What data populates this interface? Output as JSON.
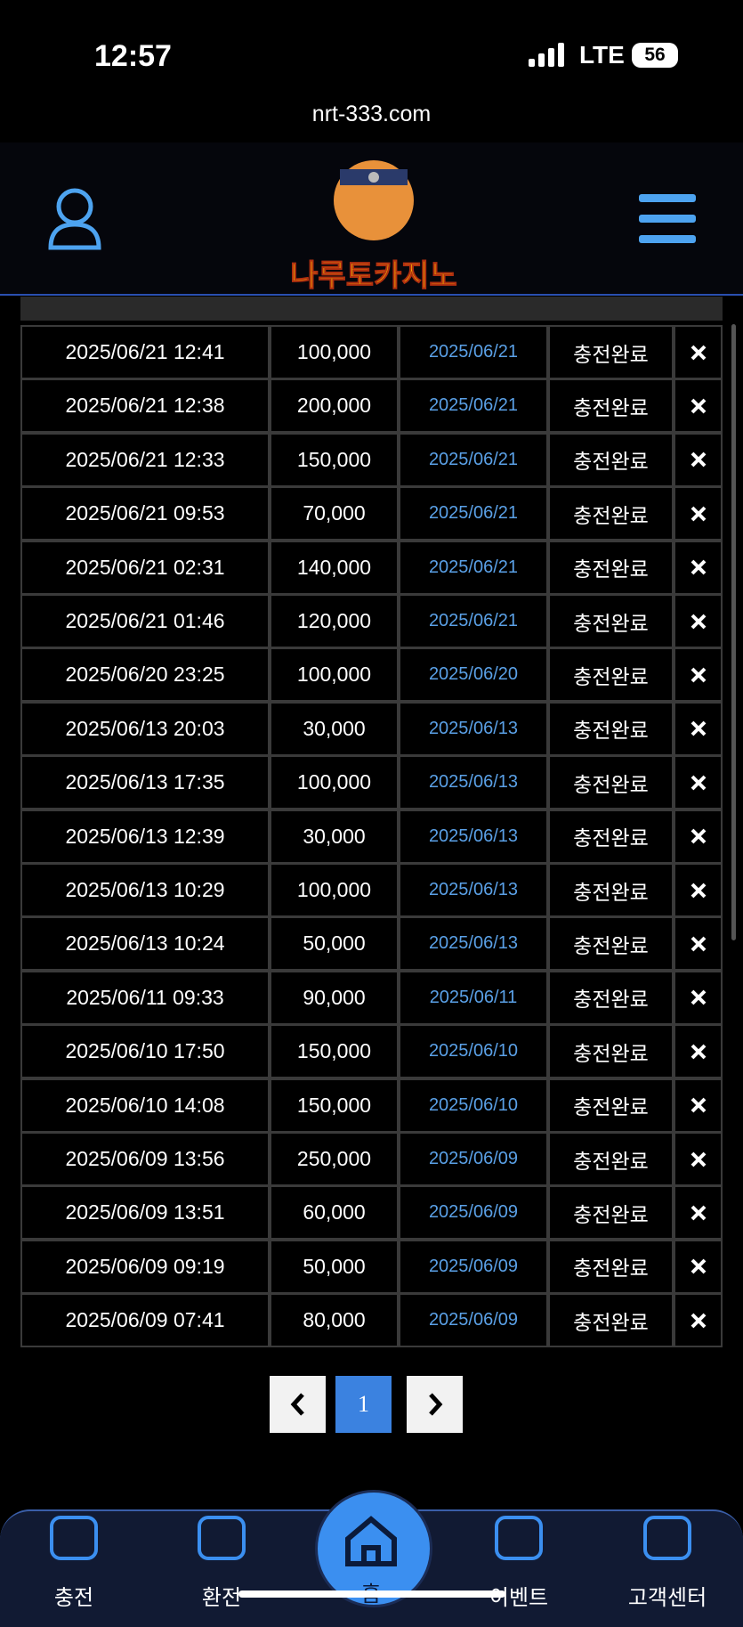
{
  "status_bar": {
    "time": "12:57",
    "network": "LTE",
    "battery": "56"
  },
  "url": "nrt-333.com",
  "logo_text": "나루토카지노",
  "table": {
    "rows": [
      [
        "2025/06/21 12:41",
        "100,000",
        "2025/06/21",
        "충전완료"
      ],
      [
        "2025/06/21 12:38",
        "200,000",
        "2025/06/21",
        "충전완료"
      ],
      [
        "2025/06/21 12:33",
        "150,000",
        "2025/06/21",
        "충전완료"
      ],
      [
        "2025/06/21 09:53",
        "70,000",
        "2025/06/21",
        "충전완료"
      ],
      [
        "2025/06/21 02:31",
        "140,000",
        "2025/06/21",
        "충전완료"
      ],
      [
        "2025/06/21 01:46",
        "120,000",
        "2025/06/21",
        "충전완료"
      ],
      [
        "2025/06/20 23:25",
        "100,000",
        "2025/06/20",
        "충전완료"
      ],
      [
        "2025/06/13 20:03",
        "30,000",
        "2025/06/13",
        "충전완료"
      ],
      [
        "2025/06/13 17:35",
        "100,000",
        "2025/06/13",
        "충전완료"
      ],
      [
        "2025/06/13 12:39",
        "30,000",
        "2025/06/13",
        "충전완료"
      ],
      [
        "2025/06/13 10:29",
        "100,000",
        "2025/06/13",
        "충전완료"
      ],
      [
        "2025/06/13 10:24",
        "50,000",
        "2025/06/13",
        "충전완료"
      ],
      [
        "2025/06/11 09:33",
        "90,000",
        "2025/06/11",
        "충전완료"
      ],
      [
        "2025/06/10 17:50",
        "150,000",
        "2025/06/10",
        "충전완료"
      ],
      [
        "2025/06/10 14:08",
        "150,000",
        "2025/06/10",
        "충전완료"
      ],
      [
        "2025/06/09 13:56",
        "250,000",
        "2025/06/09",
        "충전완료"
      ],
      [
        "2025/06/09 13:51",
        "60,000",
        "2025/06/09",
        "충전완료"
      ],
      [
        "2025/06/09 09:19",
        "50,000",
        "2025/06/09",
        "충전완료"
      ],
      [
        "2025/06/09 07:41",
        "80,000",
        "2025/06/09",
        "충전완료"
      ]
    ]
  },
  "pagination": {
    "current": "1"
  },
  "nav": [
    "충전",
    "환전",
    "홈",
    "이벤트",
    "고객센터"
  ]
}
